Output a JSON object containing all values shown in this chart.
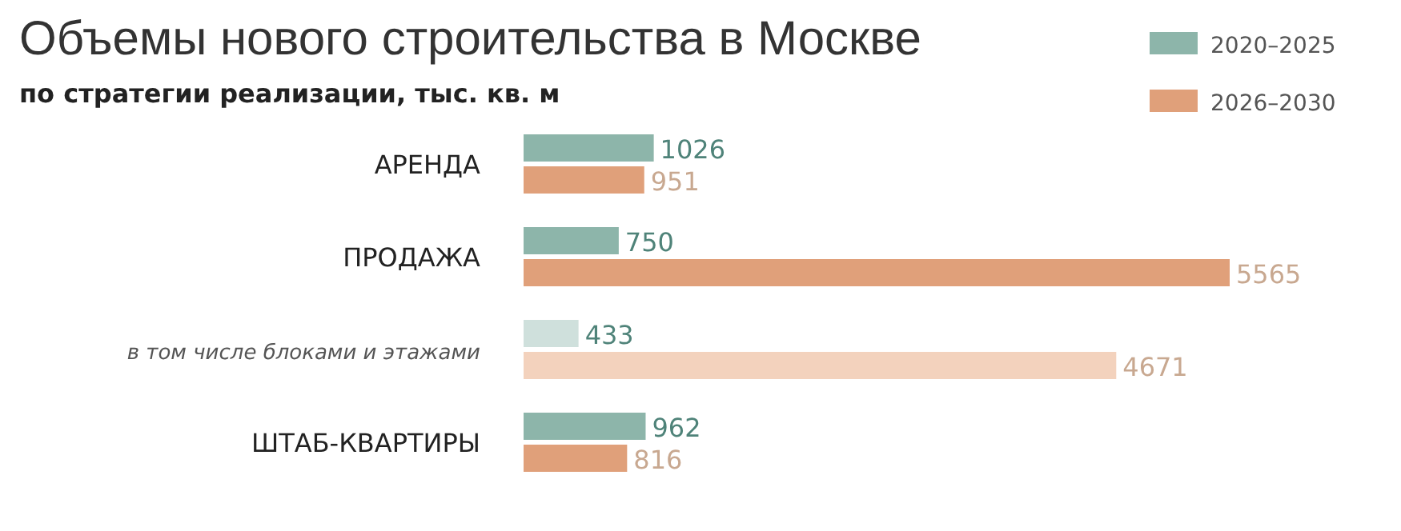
{
  "chart_data": {
    "type": "bar",
    "orientation": "horizontal",
    "title": "Объемы нового строительства в Москве",
    "subtitle": "по стратегии реализации, тыс. кв. м",
    "categories": [
      "АРЕНДА",
      "ПРОДАЖА",
      "в том числе блоками и этажами",
      "ШТАБ-КВАРТИРЫ"
    ],
    "series": [
      {
        "name": "2020–2025",
        "color": "#8db5aa",
        "colors": [
          "#8db5aa",
          "#8db5aa",
          "#cfe0dc",
          "#8db5aa"
        ],
        "values": [
          1026,
          750,
          433,
          962
        ]
      },
      {
        "name": "2026–2030",
        "color": "#e0a07a",
        "colors": [
          "#e0a07a",
          "#e0a07a",
          "#f3d2bd",
          "#e0a07a"
        ],
        "values": [
          951,
          5565,
          4671,
          816
        ]
      }
    ],
    "data_labels": true,
    "legend": "top right"
  }
}
